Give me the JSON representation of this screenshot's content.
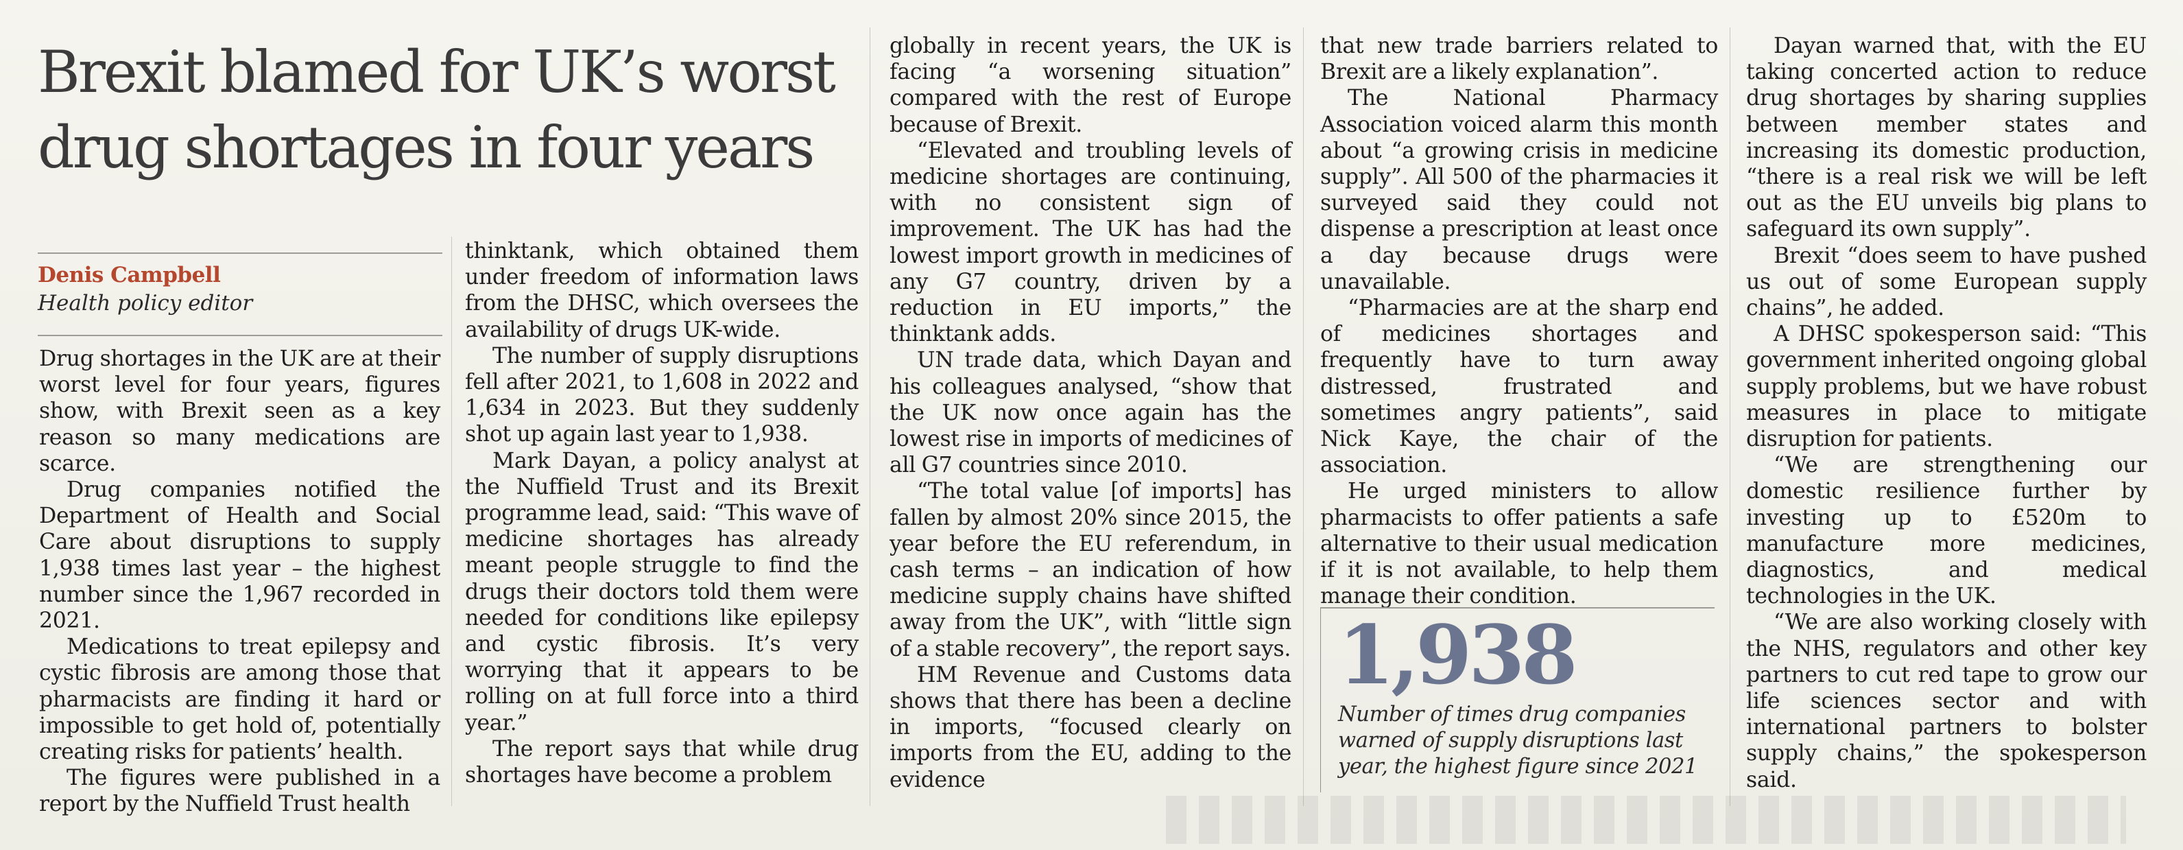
{
  "article": {
    "headline_line1": "Brexit blamed for UK’s worst",
    "headline_line2": "drug shortages in four years",
    "byline": {
      "name": "Denis Campbell",
      "role": "Health policy editor"
    },
    "columns": [
      {
        "paragraphs": [
          "Drug shortages in the UK are at their worst level for four years, figures show, with Brexit seen as a key reason so many medications are scarce.",
          "Drug companies notified the Department of Health and Social Care about disruptions to supply 1,938 times last year – the highest number since the 1,967 recorded in 2021.",
          "Medications to treat epilepsy and cystic fibrosis are among those that pharmacists are finding it hard or impossible to get hold of, potentially creating risks for patients’ health.",
          "The figures were published in a report by the Nuffield Trust health"
        ]
      },
      {
        "paragraphs": [
          "thinktank, which obtained them under freedom of information laws from the DHSC, which oversees the availability of drugs UK-wide.",
          "The number of supply disruptions fell after 2021, to 1,608 in 2022 and 1,634 in 2023. But they suddenly shot up again last year to 1,938.",
          "Mark Dayan, a policy analyst at the Nuffield Trust and its Brexit programme lead, said: “This wave of medicine shortages has already meant people struggle to find the drugs their doctors told them were needed for conditions like epilepsy and cystic fibrosis. It’s very worrying that it appears to be rolling on at full force into a third year.”",
          "The report says that while drug shortages have become a problem"
        ]
      },
      {
        "paragraphs": [
          "globally in recent years, the UK is facing “a worsening situation” compared with the rest of Europe because of Brexit.",
          "“Elevated and troubling levels of medicine shortages are continuing, with no consistent sign of improvement. The UK has had the lowest import growth in medicines of any G7 country, driven by a reduction in EU imports,” the thinktank adds.",
          "UN trade data, which Dayan and his colleagues analysed, “show that the UK now once again has the lowest rise in imports of medicines of all G7 countries since 2010.",
          "“The total value [of imports] has fallen by almost 20% since 2015, the year before the EU referendum, in cash terms – an indication of how medicine supply chains have shifted away from the UK”, with “little sign of a stable recovery”, the report says.",
          "HM Revenue and Customs data shows that there has been a decline in imports, “focused clearly on imports from the EU, adding to the evidence"
        ]
      },
      {
        "paragraphs": [
          "that new trade barriers related to Brexit are a likely explanation”.",
          "The National Pharmacy Association voiced alarm this month about “a growing crisis in medicine supply”. All 500 of the pharmacies it surveyed said they could not dispense a prescription at least once a day because drugs were unavailable.",
          "“Pharmacies are at the sharp end of medicines shortages and frequently have to turn away distressed, frustrated and sometimes angry patients”, said Nick Kaye, the chair of the association.",
          "He urged ministers to allow pharmacists to offer patients a safe alternative to their usual medication if it is not available, to help them manage their condition."
        ]
      },
      {
        "paragraphs": [
          "Dayan warned that, with the EU taking concerted action to reduce drug shortages by sharing supplies between member states and increasing its domestic production, “there is a real risk we will be left out as the EU unveils big plans to safeguard its own supply”.",
          "Brexit “does seem to have pushed us out of some European supply chains”, he added.",
          "A DHSC spokesperson said: “This government inherited ongoing global supply problems, but we have robust measures in place to mitigate disruption for patients.",
          "“We are strengthening our domestic resilience further by investing up to £520m to manufacture more medicines, diagnostics, and medical technologies in the UK.",
          "“We are also working closely with the NHS, regulators and other key partners to cut red tape to grow our life sciences sector and with international partners to bolster supply chains,” the spokesperson said."
        ]
      }
    ],
    "pull_stat": {
      "number": "1,938",
      "caption": "Number of times drug companies warned of supply disruptions last year, the highest figure since 2021"
    }
  }
}
